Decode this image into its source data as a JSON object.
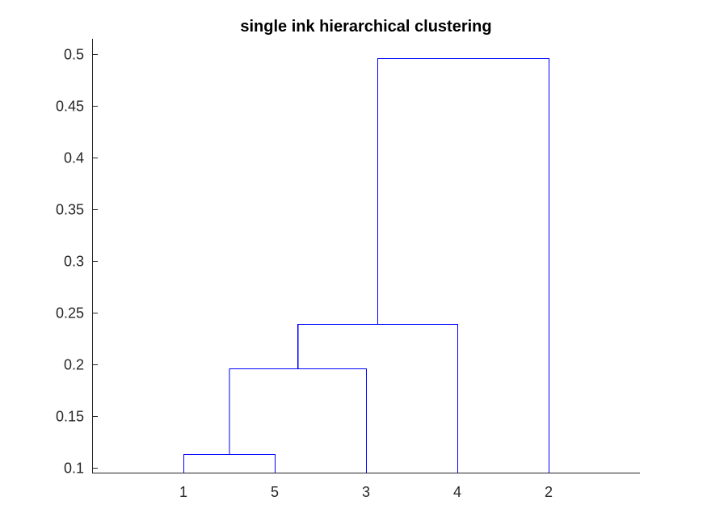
{
  "chart_data": {
    "type": "dendrogram",
    "title": "single ink hierarchical clustering",
    "xlabel": "",
    "ylabel": "",
    "ylim": [
      0.095,
      0.515
    ],
    "yticks": [
      0.1,
      0.15,
      0.2,
      0.25,
      0.3,
      0.35,
      0.4,
      0.45,
      0.5
    ],
    "ytick_labels": [
      "0.1",
      "0.15",
      "0.2",
      "0.25",
      "0.3",
      "0.35",
      "0.4",
      "0.45",
      "0.5"
    ],
    "leaf_order": [
      "1",
      "5",
      "3",
      "4",
      "2"
    ],
    "merges": [
      {
        "left": "1",
        "right": "5",
        "height": 0.113
      },
      {
        "left": "1+5",
        "right": "3",
        "height": 0.196
      },
      {
        "left": "1+5+3",
        "right": "4",
        "height": 0.239
      },
      {
        "left": "1+5+3+4",
        "right": "2",
        "height": 0.496
      }
    ],
    "line_color": "#0000ff",
    "grid": false,
    "legend": "none"
  }
}
